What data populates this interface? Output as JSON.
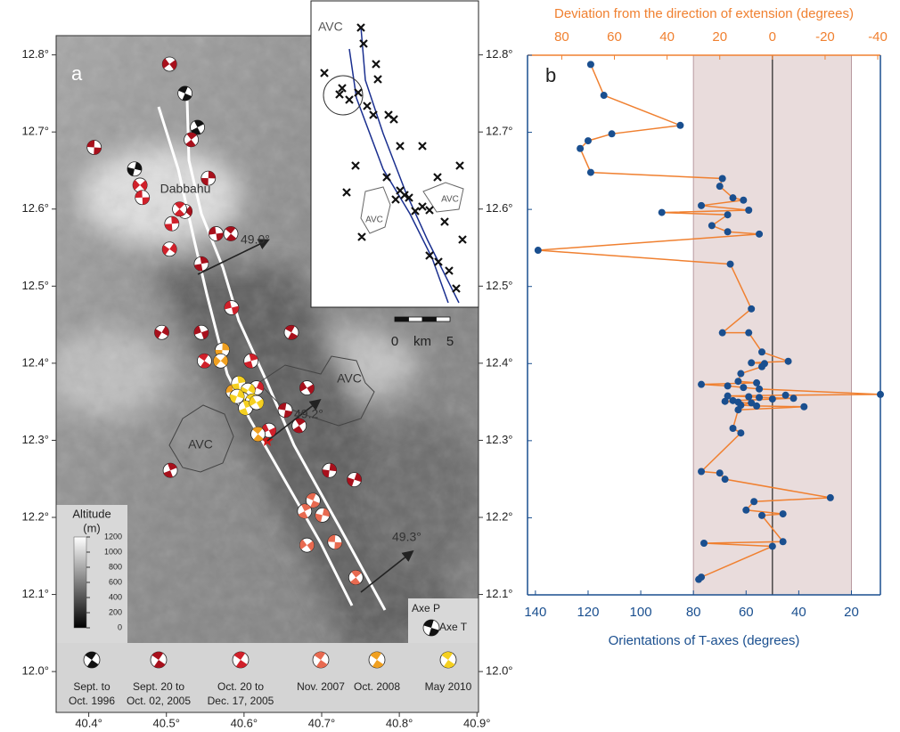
{
  "chart_data": [
    {
      "type": "map",
      "title": "a",
      "xlim": [
        40.358,
        40.902
      ],
      "ylim": [
        11.947,
        12.825
      ],
      "xticks": [
        {
          "value": 40.4,
          "label": "40.4°"
        },
        {
          "value": 40.5,
          "label": "40.5°"
        },
        {
          "value": 40.6,
          "label": "40.6°"
        },
        {
          "value": 40.7,
          "label": "40.7°"
        },
        {
          "value": 40.8,
          "label": "40.8°"
        },
        {
          "value": 40.9,
          "label": "40.9°"
        }
      ],
      "yticks": [
        {
          "value": 12.0,
          "label": "12.0°"
        },
        {
          "value": 12.1,
          "label": "12.1°"
        },
        {
          "value": 12.2,
          "label": "12.2°"
        },
        {
          "value": 12.3,
          "label": "12.3°"
        },
        {
          "value": 12.4,
          "label": "12.4°"
        },
        {
          "value": 12.5,
          "label": "12.5°"
        },
        {
          "value": 12.6,
          "label": "12.6°"
        },
        {
          "value": 12.7,
          "label": "12.7°"
        },
        {
          "value": 12.8,
          "label": "12.8°"
        }
      ],
      "series": [
        {
          "name": [
            "Sept. to",
            "Oct. 1996"
          ],
          "color": "#111111",
          "lon": [
            40.524,
            40.54,
            40.459
          ],
          "lat": [
            12.75,
            12.706,
            12.652
          ]
        },
        {
          "name": [
            "Sept. 20 to",
            "Oct. 02, 2005"
          ],
          "color": "#a8101c",
          "lon": [
            40.504,
            40.407,
            40.532,
            40.554,
            40.524,
            40.564,
            40.583,
            40.545,
            40.494,
            40.545,
            40.661,
            40.505,
            40.742,
            40.681,
            40.653,
            40.671,
            40.71
          ],
          "lat": [
            12.788,
            12.68,
            12.69,
            12.64,
            12.597,
            12.568,
            12.568,
            12.529,
            12.44,
            12.44,
            12.44,
            12.261,
            12.249,
            12.368,
            12.339,
            12.319,
            12.261
          ]
        },
        {
          "name": [
            "Oct. 20 to",
            "Dec. 17, 2005"
          ],
          "color": "#d0202a",
          "lon": [
            40.466,
            40.469,
            40.517,
            40.507,
            40.504,
            40.584,
            40.549,
            40.609,
            40.616,
            40.632
          ],
          "lat": [
            12.631,
            12.615,
            12.6,
            12.581,
            12.548,
            12.472,
            12.403,
            12.403,
            12.368,
            12.313
          ]
        },
        {
          "name": [
            "Nov. 2007"
          ],
          "color": "#e86a50",
          "lon": [
            40.689,
            40.678,
            40.701,
            40.681,
            40.717,
            40.744
          ],
          "lat": [
            12.222,
            12.208,
            12.203,
            12.164,
            12.168,
            12.122
          ]
        },
        {
          "name": [
            "Oct. 2008"
          ],
          "color": "#f0a020",
          "lon": [
            40.572,
            40.57,
            40.586,
            40.618
          ],
          "lat": [
            12.417,
            12.403,
            12.363,
            12.308
          ]
        },
        {
          "name": [
            "May 2010"
          ],
          "color": "#f5d020",
          "lon": [
            40.593,
            40.605,
            40.598,
            40.611,
            40.602,
            40.591,
            40.616
          ],
          "lat": [
            12.374,
            12.365,
            12.353,
            12.351,
            12.342,
            12.357,
            12.349
          ]
        }
      ],
      "place": "Dabbahu",
      "avc": [
        "AVC",
        "AVC"
      ],
      "annotations": [
        "49.0°",
        "49.2°",
        "49.3°"
      ],
      "colorbar": {
        "label": "Altitude",
        "unit": "(m)",
        "lim": [
          0,
          1200
        ],
        "ticks": [
          0,
          200,
          400,
          600,
          800,
          1000,
          1200
        ]
      },
      "axes_legend": [
        "Axe P",
        "Axe T"
      ],
      "inset": {
        "avc": [
          "AVC",
          "AVC"
        ],
        "scale": {
          "ticks": [
            0,
            5
          ],
          "unit": "km"
        }
      }
    },
    {
      "type": "line",
      "title": "b",
      "xlabel": "Orientations of T-axes (degrees)",
      "x2label": "Deviation from the direction of extension (degrees)",
      "xlim": [
        143,
        9
      ],
      "xticks": [
        140,
        120,
        100,
        80,
        60,
        40,
        20
      ],
      "x2lim": [
        93,
        -41
      ],
      "x2ticks": [
        80,
        60,
        40,
        20,
        0,
        -20,
        -40
      ],
      "ylim": [
        12.1,
        12.8
      ],
      "yticks": [
        12.1,
        12.2,
        12.3,
        12.4,
        12.5,
        12.6,
        12.7,
        12.8
      ],
      "band": [
        30,
        -30
      ],
      "refline": 0,
      "series": [
        {
          "color": "#f08030",
          "marker_color": "#1a4f8f",
          "x": [
            119,
            114,
            85,
            111,
            120,
            123,
            119,
            69,
            70,
            65,
            61,
            77,
            59,
            92,
            67,
            73,
            67,
            55,
            139,
            66,
            58,
            69,
            59,
            54,
            44,
            58,
            53,
            54,
            62,
            63,
            56,
            77,
            67,
            61,
            55,
            9,
            45,
            67,
            59,
            55,
            42,
            50,
            65,
            68,
            63,
            58,
            62,
            56,
            38,
            63,
            65,
            62,
            77,
            70,
            68,
            28,
            57,
            60,
            46,
            54,
            46,
            76,
            50,
            77,
            78
          ],
          "y": [
            12.788,
            12.748,
            12.709,
            12.698,
            12.689,
            12.679,
            12.648,
            12.64,
            12.63,
            12.615,
            12.612,
            12.605,
            12.599,
            12.596,
            12.593,
            12.579,
            12.571,
            12.568,
            12.547,
            12.529,
            12.471,
            12.44,
            12.44,
            12.415,
            12.403,
            12.401,
            12.4,
            12.396,
            12.387,
            12.377,
            12.375,
            12.373,
            12.371,
            12.369,
            12.367,
            12.36,
            12.359,
            12.358,
            12.357,
            12.356,
            12.355,
            12.354,
            12.352,
            12.351,
            12.35,
            12.349,
            12.346,
            12.345,
            12.344,
            12.34,
            12.316,
            12.31,
            12.26,
            12.258,
            12.25,
            12.226,
            12.221,
            12.21,
            12.205,
            12.203,
            12.169,
            12.167,
            12.163,
            12.123,
            12.12
          ]
        }
      ]
    }
  ]
}
